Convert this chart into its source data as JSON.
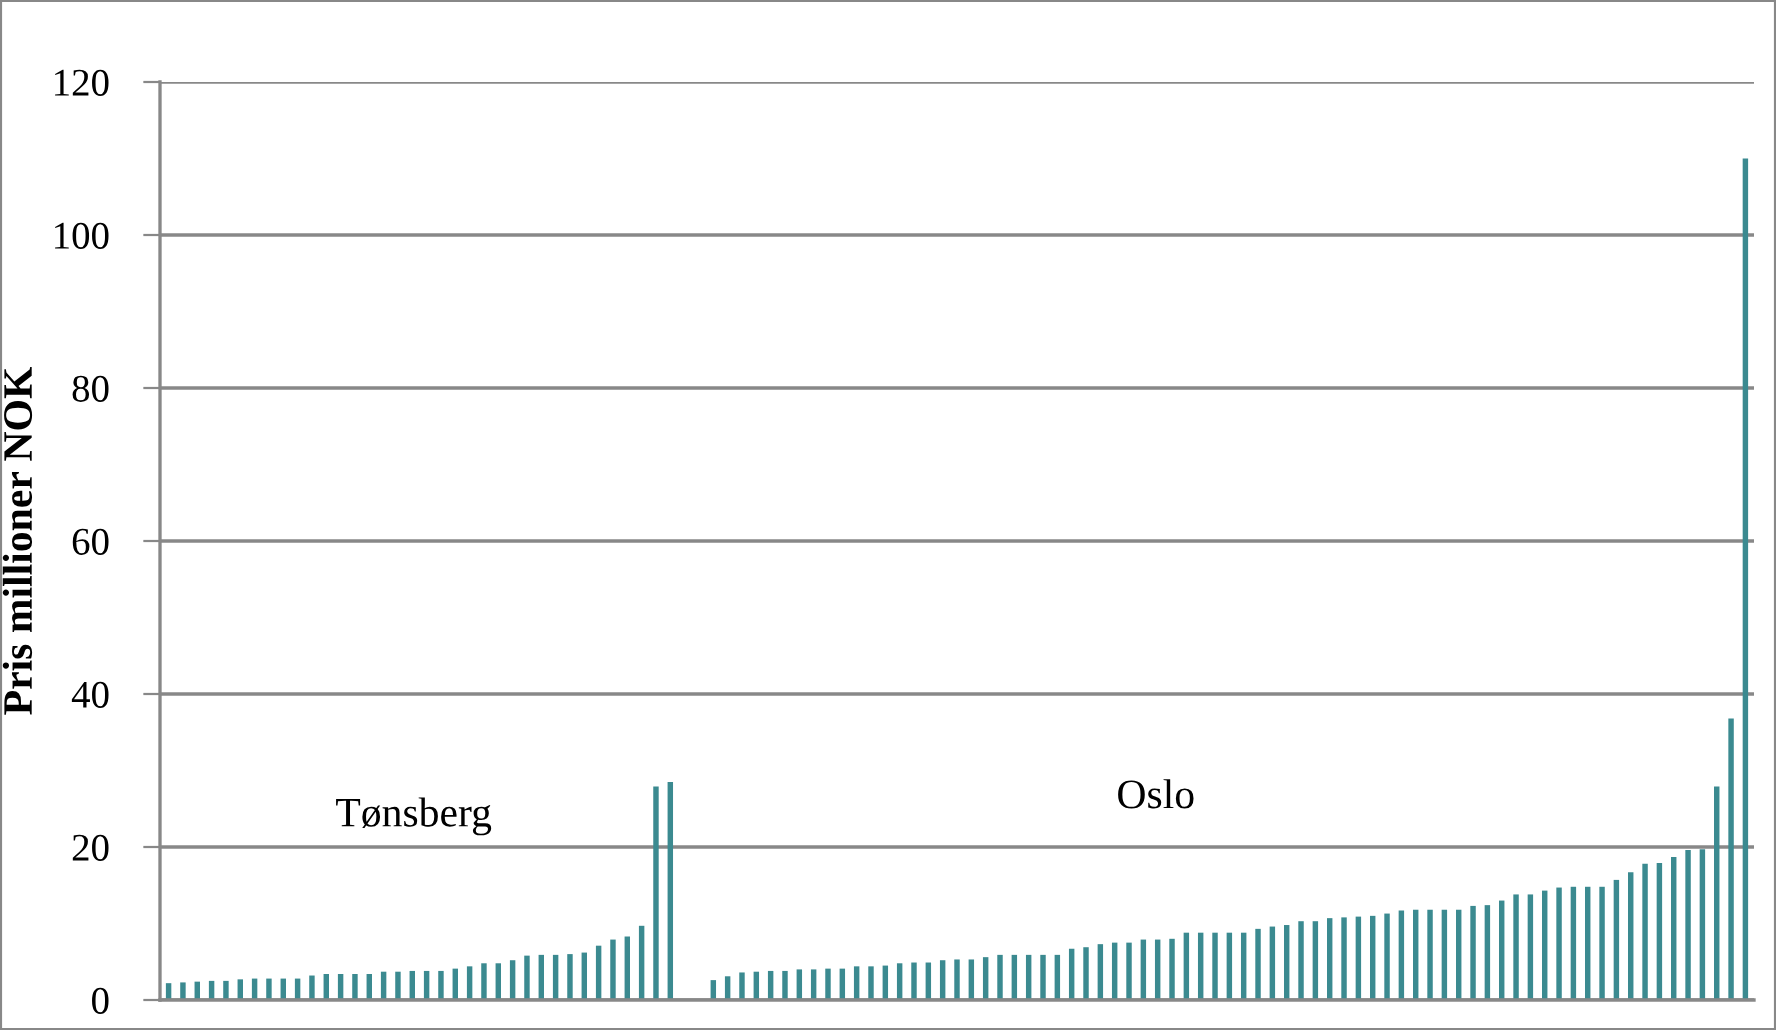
{
  "chart_data": {
    "type": "bar",
    "ylabel": "Pris millioner NOK",
    "categories": [
      null,
      null,
      null,
      null,
      null,
      null,
      null,
      null,
      null,
      null,
      null,
      null,
      null,
      null,
      null,
      null,
      null,
      null,
      null,
      null,
      null,
      null,
      null,
      null,
      null,
      null,
      null,
      null,
      null,
      null,
      null,
      null,
      null,
      null,
      null,
      null,
      null,
      null,
      null,
      null,
      null,
      null,
      null,
      null,
      null,
      null,
      null,
      null,
      null,
      null,
      null,
      null,
      null,
      null,
      null,
      null,
      null,
      null,
      null,
      null,
      null,
      null,
      null,
      null,
      null,
      null,
      null,
      null,
      null,
      null,
      null,
      null,
      null,
      null,
      null,
      null,
      null,
      null,
      null,
      null,
      null,
      null,
      null,
      null,
      null,
      null,
      null,
      null,
      null,
      null,
      null,
      null,
      null,
      null,
      null,
      null,
      null,
      null,
      null,
      null,
      null,
      null,
      null,
      null,
      null,
      null,
      null,
      null,
      null,
      null,
      null
    ],
    "values": [
      2.2,
      2.3,
      2.4,
      2.5,
      2.5,
      2.7,
      2.8,
      2.8,
      2.8,
      2.8,
      3.2,
      3.4,
      3.4,
      3.4,
      3.4,
      3.7,
      3.7,
      3.8,
      3.8,
      3.8,
      4.1,
      4.4,
      4.8,
      4.8,
      5.2,
      5.8,
      5.9,
      5.9,
      6.0,
      6.2,
      7.1,
      7.9,
      8.3,
      9.7,
      27.9,
      28.5,
      null,
      null,
      2.6,
      3.1,
      3.6,
      3.7,
      3.8,
      3.8,
      4.0,
      4.0,
      4.1,
      4.1,
      4.4,
      4.4,
      4.5,
      4.8,
      4.9,
      4.9,
      5.2,
      5.3,
      5.3,
      5.6,
      5.9,
      5.9,
      5.9,
      5.9,
      5.9,
      6.7,
      6.9,
      7.3,
      7.5,
      7.5,
      7.9,
      7.9,
      8.0,
      8.8,
      8.8,
      8.8,
      8.8,
      8.8,
      9.3,
      9.6,
      9.8,
      10.3,
      10.3,
      10.7,
      10.8,
      10.9,
      11.0,
      11.3,
      11.7,
      11.8,
      11.8,
      11.8,
      11.8,
      12.3,
      12.4,
      13.0,
      13.8,
      13.8,
      14.3,
      14.7,
      14.8,
      14.8,
      14.8,
      15.7,
      16.7,
      17.8,
      17.9,
      18.7,
      19.6,
      19.7,
      27.9,
      36.8,
      110
    ],
    "color": "#3b8a90",
    "ylim": [
      0,
      120
    ],
    "yticks": [
      0,
      20,
      40,
      60,
      80,
      100,
      120
    ],
    "grid": "y",
    "tick_labels": "y",
    "annotations": [
      "Tønsberg",
      "Oslo"
    ]
  }
}
